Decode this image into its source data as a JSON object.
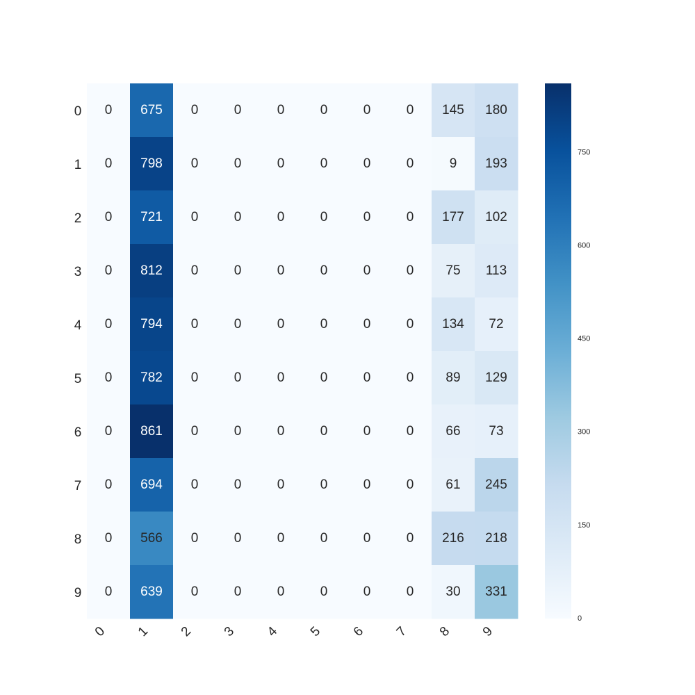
{
  "chart_data": {
    "type": "heatmap",
    "title": "",
    "xlabel": "",
    "ylabel": "",
    "colormap": "Blues",
    "x_labels": [
      "0",
      "1",
      "2",
      "3",
      "4",
      "5",
      "6",
      "7",
      "8",
      "9"
    ],
    "y_labels": [
      "0",
      "1",
      "2",
      "3",
      "4",
      "5",
      "6",
      "7",
      "8",
      "9"
    ],
    "values": [
      [
        0,
        675,
        0,
        0,
        0,
        0,
        0,
        0,
        145,
        180
      ],
      [
        0,
        798,
        0,
        0,
        0,
        0,
        0,
        0,
        9,
        193
      ],
      [
        0,
        721,
        0,
        0,
        0,
        0,
        0,
        0,
        177,
        102
      ],
      [
        0,
        812,
        0,
        0,
        0,
        0,
        0,
        0,
        75,
        113
      ],
      [
        0,
        794,
        0,
        0,
        0,
        0,
        0,
        0,
        134,
        72
      ],
      [
        0,
        782,
        0,
        0,
        0,
        0,
        0,
        0,
        89,
        129
      ],
      [
        0,
        861,
        0,
        0,
        0,
        0,
        0,
        0,
        66,
        73
      ],
      [
        0,
        694,
        0,
        0,
        0,
        0,
        0,
        0,
        61,
        245
      ],
      [
        0,
        566,
        0,
        0,
        0,
        0,
        0,
        0,
        216,
        218
      ],
      [
        0,
        639,
        0,
        0,
        0,
        0,
        0,
        0,
        30,
        331
      ]
    ],
    "value_range": [
      0,
      861
    ],
    "colorbar": {
      "ticks": [
        0,
        150,
        300,
        450,
        600,
        750
      ],
      "tick_labels": [
        "0",
        "150",
        "300",
        "450",
        "600",
        "750"
      ]
    },
    "x_tick_rotation": "45 degrees",
    "annotations": true,
    "grid": false,
    "legend": "colorbar right"
  }
}
